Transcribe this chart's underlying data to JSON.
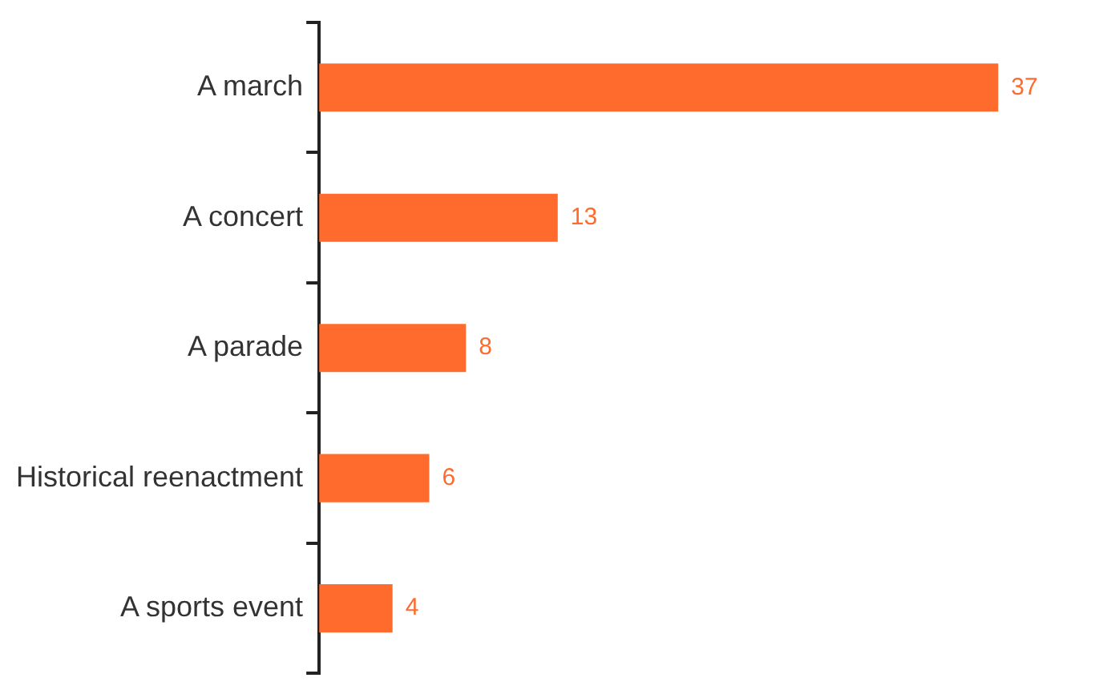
{
  "chart_data": {
    "type": "bar",
    "orientation": "horizontal",
    "categories": [
      "A march",
      "A concert",
      "A parade",
      "Historical reenactment",
      "A sports event"
    ],
    "values": [
      37,
      13,
      8,
      6,
      4
    ],
    "color": "#ff6b2c",
    "data_labels": true,
    "grid": false,
    "legend": false,
    "tick_labels": "y"
  }
}
